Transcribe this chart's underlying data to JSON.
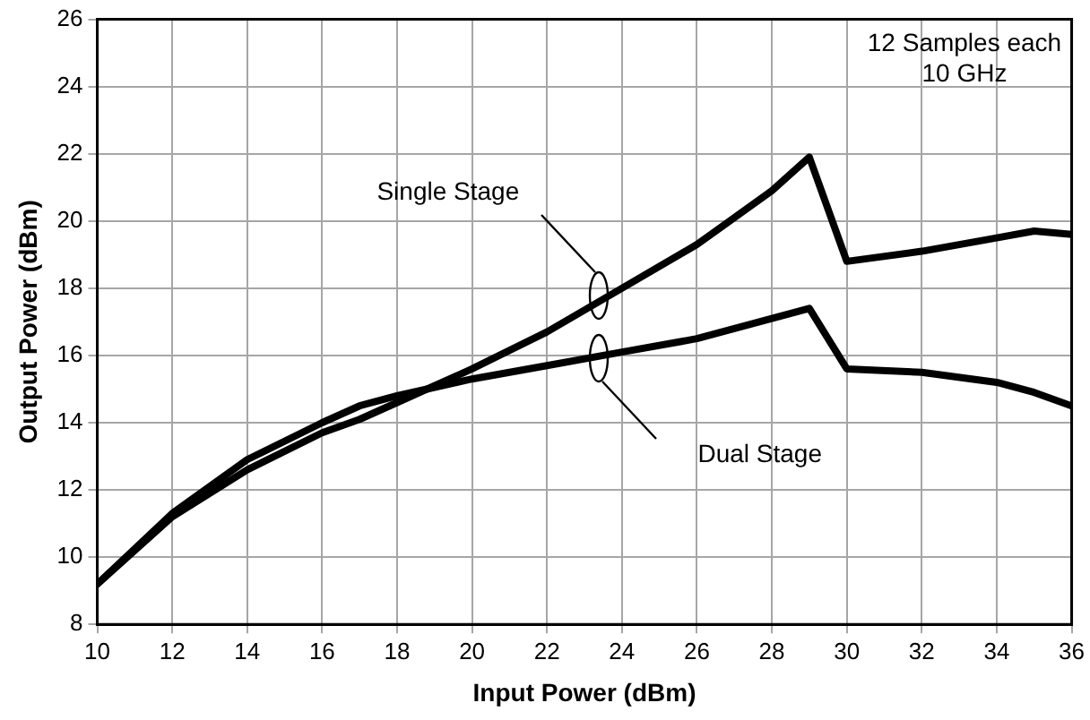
{
  "chart_data": {
    "type": "line",
    "xlabel": "Input Power (dBm)",
    "ylabel": "Output Power (dBm)",
    "x": [
      10,
      12,
      14,
      16,
      17,
      18,
      20,
      22,
      24,
      26,
      28,
      29,
      30,
      32,
      34,
      35,
      36
    ],
    "series": [
      {
        "color": "#000000",
        "values": [
          9.2,
          11.2,
          12.6,
          13.7,
          14.1,
          14.6,
          15.6,
          16.7,
          18.0,
          19.3,
          20.9,
          21.9,
          18.8,
          19.1,
          19.5,
          19.7,
          19.6
        ]
      },
      {
        "color": "#000000",
        "values": [
          9.2,
          11.3,
          12.9,
          14.0,
          14.5,
          14.8,
          15.3,
          15.7,
          16.1,
          16.5,
          17.1,
          17.4,
          15.6,
          15.5,
          15.2,
          14.9,
          14.5
        ]
      }
    ],
    "xlim": [
      10,
      36
    ],
    "xticks": [
      10,
      12,
      14,
      16,
      18,
      20,
      22,
      24,
      26,
      28,
      30,
      32,
      34,
      36
    ],
    "ylim": [
      8,
      26
    ],
    "yticks": [
      8,
      10,
      12,
      14,
      16,
      18,
      20,
      22,
      24,
      26
    ],
    "grid": true,
    "legend": false,
    "marker": "none",
    "line_style": "solid",
    "annotations": [
      "Single Stage",
      "Dual Stage",
      "12 Samples each\n10 GHz"
    ]
  }
}
